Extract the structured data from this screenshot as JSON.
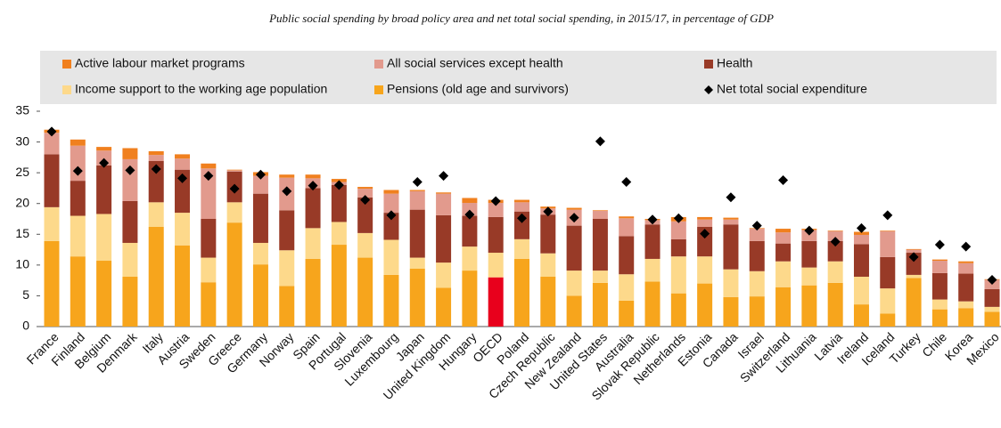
{
  "chart_data": {
    "type": "stacked_bar",
    "title": "Public social spending by broad policy area and net total social spending, in 2015/17, in percentage of GDP",
    "categories": [
      "France",
      "Finland",
      "Belgium",
      "Denmark",
      "Italy",
      "Austria",
      "Sweden",
      "Greece",
      "Germany",
      "Norway",
      "Spain",
      "Portugal",
      "Slovenia",
      "Luxembourg",
      "Japan",
      "United Kingdom",
      "Hungary",
      "OECD",
      "Poland",
      "Czech Republic",
      "New Zealand",
      "United States",
      "Australia",
      "Slovak Republic",
      "Netherlands",
      "Estonia",
      "Canada",
      "Israel",
      "Switzerland",
      "Lithuania",
      "Latvia",
      "Ireland",
      "Iceland",
      "Turkey",
      "Chile",
      "Korea",
      "Mexico"
    ],
    "series": [
      {
        "name": "Active labour market programs",
        "color": "#f0801f",
        "values": [
          0.5,
          1.0,
          0.6,
          1.8,
          0.6,
          0.7,
          0.8,
          0.1,
          0.6,
          0.5,
          0.6,
          0.5,
          0.3,
          0.6,
          0.2,
          0.2,
          0.8,
          0.5,
          0.4,
          0.3,
          0.3,
          0.1,
          0.3,
          0.2,
          0.7,
          0.4,
          0.3,
          0.1,
          0.6,
          0.2,
          0.1,
          0.5,
          0.1,
          0.1,
          0.2,
          0.3,
          0.1
        ]
      },
      {
        "name": "All social services except health",
        "color": "#e29a8d",
        "values": [
          3.5,
          5.7,
          2.4,
          6.8,
          1.0,
          1.8,
          8.2,
          0.2,
          2.9,
          5.3,
          1.6,
          0.5,
          1.4,
          3.1,
          3.0,
          3.5,
          2.1,
          2.3,
          1.5,
          1.0,
          2.6,
          1.3,
          2.9,
          0.7,
          2.9,
          1.2,
          0.8,
          2.0,
          1.8,
          1.8,
          1.6,
          1.5,
          4.2,
          0.5,
          2.0,
          1.7,
          1.5
        ]
      },
      {
        "name": "Health",
        "color": "#983a27",
        "values": [
          8.6,
          5.7,
          7.9,
          6.8,
          6.7,
          7.0,
          6.3,
          5.0,
          8.0,
          6.5,
          6.5,
          6.0,
          5.8,
          4.4,
          7.8,
          7.7,
          5.0,
          5.8,
          4.5,
          6.3,
          7.3,
          8.4,
          6.2,
          5.6,
          2.8,
          4.8,
          7.3,
          4.9,
          2.9,
          4.3,
          3.3,
          5.3,
          5.1,
          3.6,
          4.3,
          4.5,
          2.9
        ]
      },
      {
        "name": "Income support to the working age population",
        "color": "#fdd98b",
        "values": [
          5.5,
          6.6,
          7.6,
          5.5,
          4.0,
          5.3,
          4.0,
          3.3,
          3.5,
          5.8,
          5.0,
          3.7,
          4.0,
          5.7,
          1.8,
          4.1,
          3.9,
          4.0,
          3.2,
          3.8,
          4.1,
          2.0,
          4.3,
          3.7,
          6.0,
          4.4,
          4.5,
          4.1,
          4.2,
          2.9,
          3.5,
          4.5,
          4.1,
          0.5,
          1.6,
          1.1,
          0.8
        ]
      },
      {
        "name": "Pensions (old age and survivors)",
        "color": "#f7a51c",
        "values": [
          13.9,
          11.4,
          10.7,
          8.1,
          16.2,
          13.2,
          7.2,
          16.9,
          10.1,
          6.6,
          11.0,
          13.3,
          11.2,
          8.4,
          9.4,
          6.3,
          9.1,
          8.0,
          11.0,
          8.1,
          5.0,
          7.1,
          4.2,
          7.3,
          5.4,
          7.0,
          4.8,
          4.9,
          6.4,
          6.7,
          7.1,
          3.6,
          2.1,
          7.9,
          2.8,
          3.0,
          2.4
        ]
      }
    ],
    "markers": {
      "name": "Net total social expenditure",
      "color": "#000000",
      "values": [
        31.7,
        25.3,
        26.6,
        25.4,
        25.6,
        24.1,
        24.5,
        22.4,
        24.7,
        22.0,
        22.9,
        23.0,
        20.6,
        18.1,
        23.5,
        24.5,
        18.2,
        20.4,
        17.6,
        18.7,
        17.7,
        30.1,
        23.5,
        17.4,
        17.6,
        15.1,
        21.0,
        16.4,
        23.8,
        15.6,
        13.8,
        16.0,
        18.1,
        11.3,
        13.3,
        13.0,
        7.6
      ]
    },
    "highlight": {
      "category": "OECD",
      "color": "#e8001c"
    },
    "ylim": [
      0,
      35
    ],
    "yticks": [
      0,
      5,
      10,
      15,
      20,
      25,
      30,
      35
    ],
    "legend": "top"
  }
}
